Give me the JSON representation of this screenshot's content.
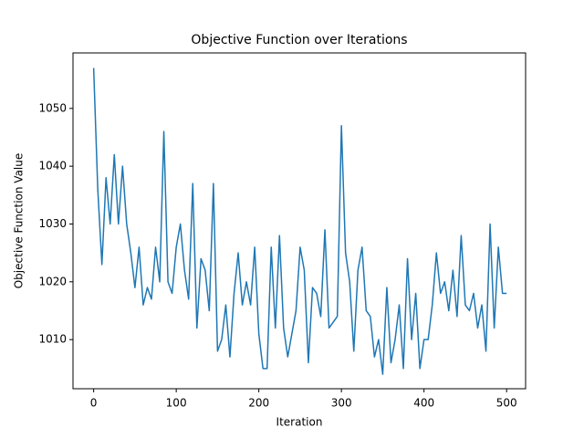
{
  "chart_data": {
    "type": "line",
    "title": "Objective Function over Iterations",
    "x_label": "Iteration",
    "y_label": "Objective Function Value",
    "x": [
      0,
      5,
      10,
      15,
      20,
      25,
      30,
      35,
      40,
      45,
      50,
      55,
      60,
      65,
      70,
      75,
      80,
      85,
      90,
      95,
      100,
      105,
      110,
      115,
      120,
      125,
      130,
      135,
      140,
      145,
      150,
      155,
      160,
      165,
      170,
      175,
      180,
      185,
      190,
      195,
      200,
      205,
      210,
      215,
      220,
      225,
      230,
      235,
      240,
      245,
      250,
      255,
      260,
      265,
      270,
      275,
      280,
      285,
      290,
      295,
      300,
      305,
      310,
      315,
      320,
      325,
      330,
      335,
      340,
      345,
      350,
      355,
      360,
      365,
      370,
      375,
      380,
      385,
      390,
      395,
      400,
      405,
      410,
      415,
      420,
      425,
      430,
      435,
      440,
      445,
      450,
      455,
      460,
      465,
      470,
      475,
      480,
      485,
      490,
      495,
      500
    ],
    "series": [
      {
        "color": "#1f77b4",
        "values": [
          1057,
          1036,
          1023,
          1038,
          1030,
          1042,
          1030,
          1040,
          1030,
          1025,
          1019,
          1026,
          1016,
          1019,
          1017,
          1026,
          1020,
          1046,
          1020,
          1018,
          1026,
          1030,
          1022,
          1017,
          1037,
          1012,
          1024,
          1022,
          1015,
          1037,
          1008,
          1010,
          1016,
          1007,
          1018,
          1025,
          1016,
          1020,
          1016,
          1026,
          1011,
          1005,
          1005,
          1026,
          1012,
          1028,
          1012,
          1007,
          1011,
          1015,
          1026,
          1022,
          1006,
          1019,
          1018,
          1014,
          1029,
          1012,
          1013,
          1014,
          1047,
          1025,
          1020,
          1008,
          1022,
          1026,
          1015,
          1014,
          1007,
          1010,
          1004,
          1019,
          1006,
          1010,
          1016,
          1005,
          1024,
          1010,
          1018,
          1005,
          1010,
          1010,
          1016,
          1025,
          1018,
          1020,
          1015,
          1022,
          1014,
          1028,
          1016,
          1015,
          1018,
          1012,
          1016,
          1008,
          1030,
          1012,
          1026,
          1018,
          1018
        ]
      }
    ],
    "xlim": [
      -25,
      523
    ],
    "ylim": [
      1001.5,
      1059.6
    ],
    "xticks": [
      0,
      100,
      200,
      300,
      400,
      500
    ],
    "yticks": [
      1010,
      1020,
      1030,
      1040,
      1050
    ]
  }
}
